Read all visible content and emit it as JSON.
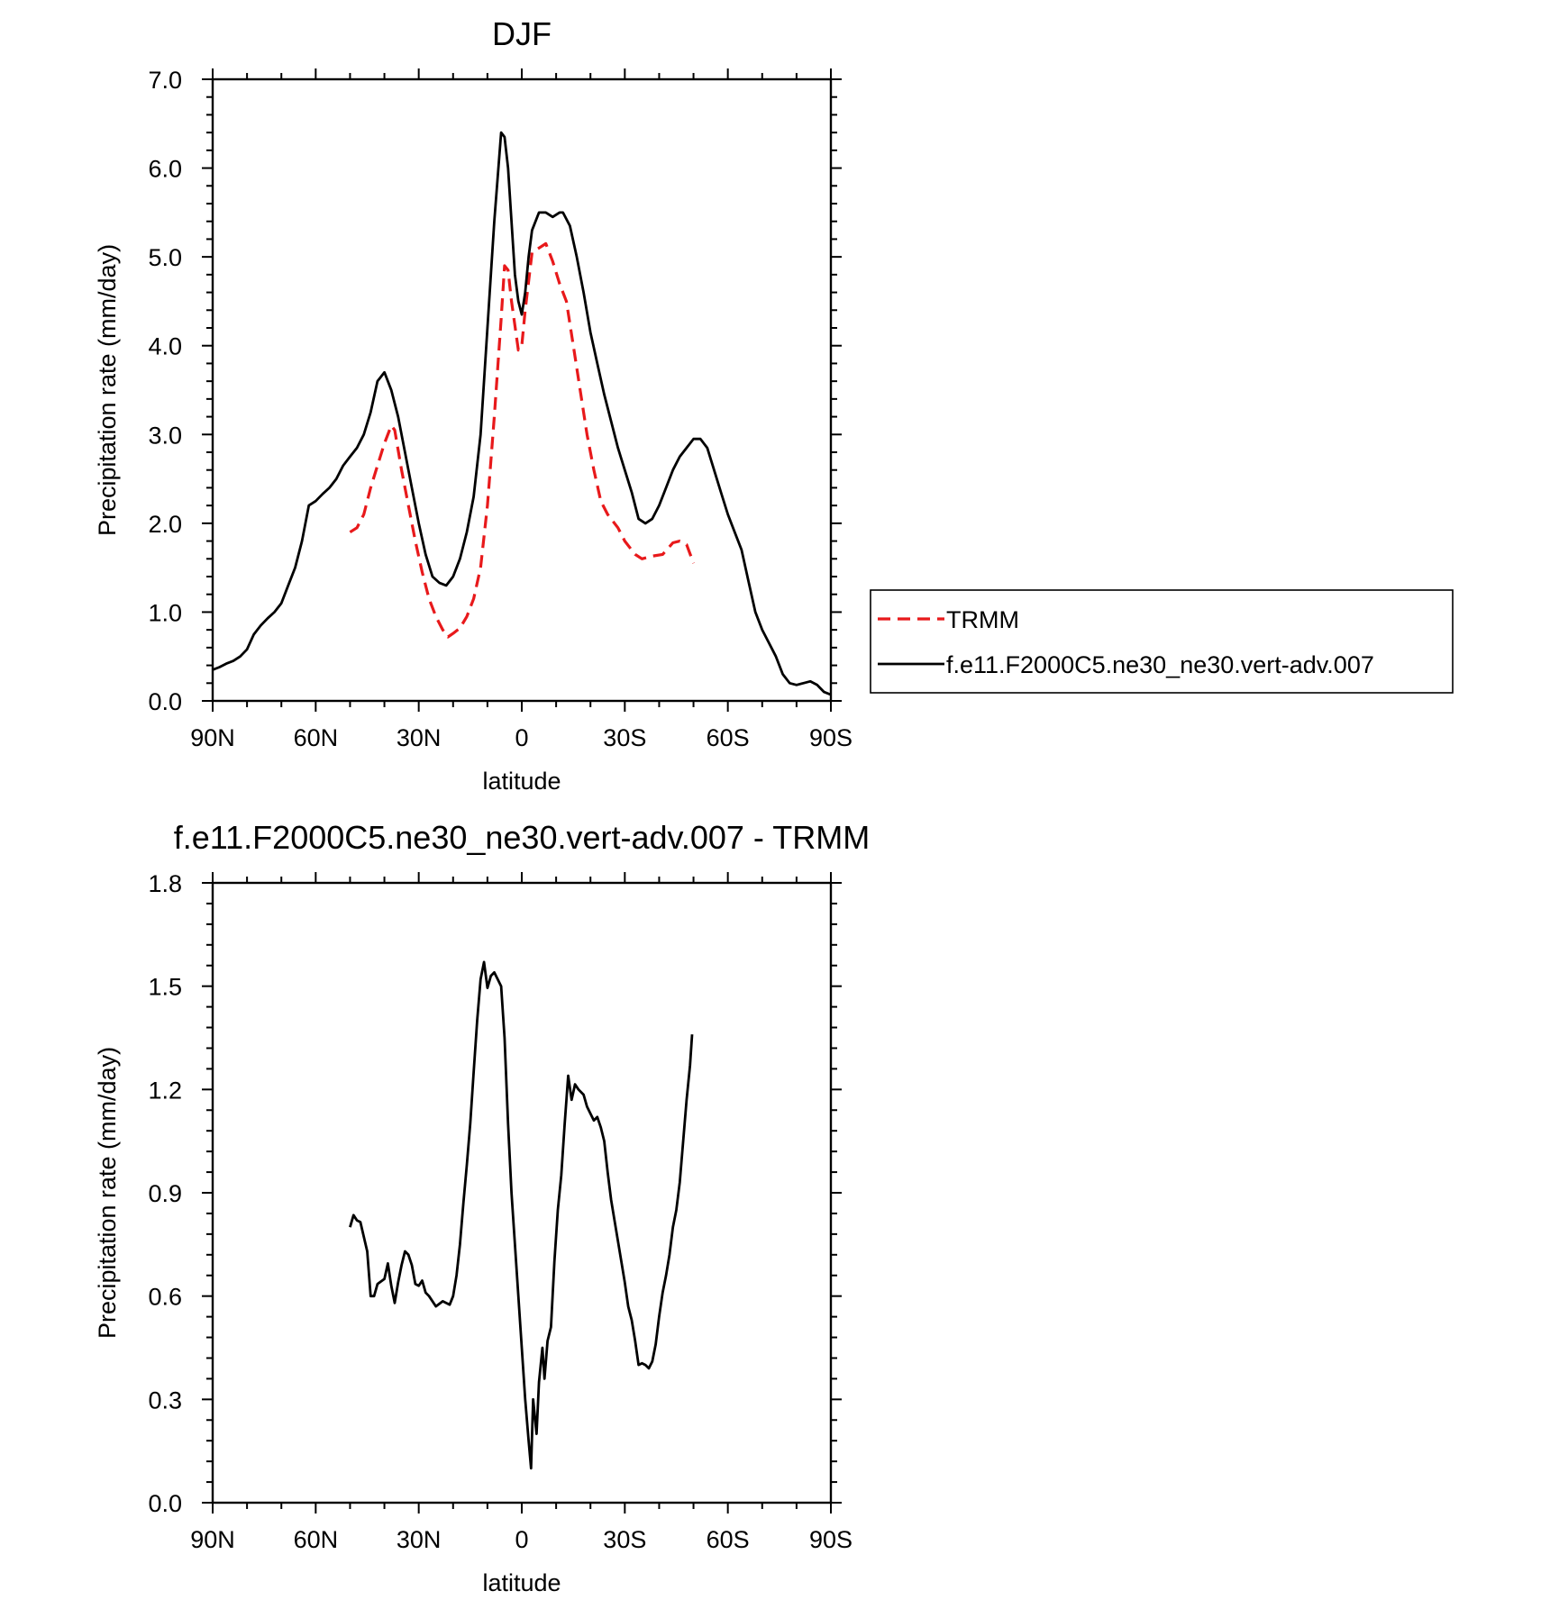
{
  "chart_data": [
    {
      "type": "line",
      "title": "DJF",
      "xlabel": "latitude",
      "ylabel": "Precipitation rate (mm/day)",
      "x_range": [
        90,
        -90
      ],
      "ylim": [
        0,
        7
      ],
      "xticks": [
        {
          "value": 90,
          "label": "90N"
        },
        {
          "value": 60,
          "label": "60N"
        },
        {
          "value": 30,
          "label": "30N"
        },
        {
          "value": 0,
          "label": "0"
        },
        {
          "value": -30,
          "label": "30S"
        },
        {
          "value": -60,
          "label": "60S"
        },
        {
          "value": -90,
          "label": "90S"
        }
      ],
      "yticks": [
        {
          "value": 0,
          "label": "0.0"
        },
        {
          "value": 1,
          "label": "1.0"
        },
        {
          "value": 2,
          "label": "2.0"
        },
        {
          "value": 3,
          "label": "3.0"
        },
        {
          "value": 4,
          "label": "4.0"
        },
        {
          "value": 5,
          "label": "5.0"
        },
        {
          "value": 6,
          "label": "6.0"
        },
        {
          "value": 7,
          "label": "7.0"
        }
      ],
      "legend_position": "right",
      "series": [
        {
          "name": "TRMM",
          "color": "#e8191b",
          "style": "dashed",
          "points": [
            [
              50,
              1.9
            ],
            [
              48,
              1.95
            ],
            [
              46,
              2.1
            ],
            [
              44,
              2.4
            ],
            [
              42,
              2.65
            ],
            [
              40,
              2.9
            ],
            [
              38,
              3.1
            ],
            [
              37,
              3.05
            ],
            [
              35,
              2.6
            ],
            [
              33,
              2.2
            ],
            [
              31,
              1.8
            ],
            [
              29,
              1.45
            ],
            [
              27,
              1.15
            ],
            [
              25,
              0.95
            ],
            [
              23,
              0.8
            ],
            [
              21.5,
              0.72
            ],
            [
              20,
              0.76
            ],
            [
              18,
              0.82
            ],
            [
              16,
              0.95
            ],
            [
              14,
              1.15
            ],
            [
              12,
              1.5
            ],
            [
              10,
              2.2
            ],
            [
              8,
              3.2
            ],
            [
              6,
              4.3
            ],
            [
              5,
              4.9
            ],
            [
              4,
              4.85
            ],
            [
              3,
              4.5
            ],
            [
              1,
              3.95
            ],
            [
              0,
              4.0
            ],
            [
              -1,
              4.4
            ],
            [
              -3,
              5.05
            ],
            [
              -5,
              5.1
            ],
            [
              -7,
              5.15
            ],
            [
              -9,
              4.95
            ],
            [
              -11,
              4.7
            ],
            [
              -13,
              4.5
            ],
            [
              -15,
              4.0
            ],
            [
              -17,
              3.5
            ],
            [
              -19,
              3.0
            ],
            [
              -21,
              2.6
            ],
            [
              -23,
              2.25
            ],
            [
              -25,
              2.1
            ],
            [
              -28,
              1.95
            ],
            [
              -30,
              1.8
            ],
            [
              -33,
              1.65
            ],
            [
              -35,
              1.6
            ],
            [
              -38,
              1.63
            ],
            [
              -41,
              1.65
            ],
            [
              -44,
              1.78
            ],
            [
              -46,
              1.8
            ],
            [
              -48,
              1.76
            ],
            [
              -50,
              1.55
            ]
          ]
        },
        {
          "name": "f.e11.F2000C5.ne30_ne30.vert-adv.007",
          "color": "#000000",
          "style": "solid",
          "points": [
            [
              90,
              0.35
            ],
            [
              88,
              0.38
            ],
            [
              86,
              0.42
            ],
            [
              84,
              0.45
            ],
            [
              82,
              0.5
            ],
            [
              80,
              0.58
            ],
            [
              78,
              0.75
            ],
            [
              76,
              0.85
            ],
            [
              74,
              0.93
            ],
            [
              72,
              1.0
            ],
            [
              70,
              1.1
            ],
            [
              68,
              1.3
            ],
            [
              66,
              1.5
            ],
            [
              64,
              1.8
            ],
            [
              62,
              2.2
            ],
            [
              60,
              2.25
            ],
            [
              58,
              2.33
            ],
            [
              56,
              2.4
            ],
            [
              54,
              2.5
            ],
            [
              52,
              2.65
            ],
            [
              50,
              2.75
            ],
            [
              48,
              2.85
            ],
            [
              46,
              3.0
            ],
            [
              44,
              3.25
            ],
            [
              42,
              3.6
            ],
            [
              40,
              3.7
            ],
            [
              38,
              3.5
            ],
            [
              36,
              3.2
            ],
            [
              34,
              2.8
            ],
            [
              32,
              2.4
            ],
            [
              30,
              2.0
            ],
            [
              28,
              1.65
            ],
            [
              26,
              1.4
            ],
            [
              24,
              1.33
            ],
            [
              22,
              1.3
            ],
            [
              20,
              1.4
            ],
            [
              18,
              1.6
            ],
            [
              16,
              1.9
            ],
            [
              14,
              2.3
            ],
            [
              12,
              3.0
            ],
            [
              10,
              4.2
            ],
            [
              8,
              5.4
            ],
            [
              6,
              6.4
            ],
            [
              5,
              6.35
            ],
            [
              4,
              6.0
            ],
            [
              3,
              5.4
            ],
            [
              2,
              4.8
            ],
            [
              1,
              4.5
            ],
            [
              0,
              4.35
            ],
            [
              -1,
              4.6
            ],
            [
              -2,
              5.0
            ],
            [
              -3,
              5.3
            ],
            [
              -5,
              5.5
            ],
            [
              -7,
              5.5
            ],
            [
              -9,
              5.45
            ],
            [
              -11,
              5.5
            ],
            [
              -12,
              5.5
            ],
            [
              -14,
              5.35
            ],
            [
              -16,
              5.0
            ],
            [
              -18,
              4.6
            ],
            [
              -20,
              4.15
            ],
            [
              -22,
              3.8
            ],
            [
              -24,
              3.45
            ],
            [
              -26,
              3.15
            ],
            [
              -28,
              2.85
            ],
            [
              -30,
              2.6
            ],
            [
              -32,
              2.35
            ],
            [
              -34,
              2.05
            ],
            [
              -36,
              2.0
            ],
            [
              -38,
              2.05
            ],
            [
              -40,
              2.2
            ],
            [
              -42,
              2.4
            ],
            [
              -44,
              2.6
            ],
            [
              -46,
              2.75
            ],
            [
              -48,
              2.85
            ],
            [
              -50,
              2.95
            ],
            [
              -52,
              2.95
            ],
            [
              -54,
              2.85
            ],
            [
              -56,
              2.6
            ],
            [
              -58,
              2.35
            ],
            [
              -60,
              2.1
            ],
            [
              -62,
              1.9
            ],
            [
              -64,
              1.7
            ],
            [
              -66,
              1.35
            ],
            [
              -68,
              1.0
            ],
            [
              -70,
              0.8
            ],
            [
              -72,
              0.65
            ],
            [
              -74,
              0.5
            ],
            [
              -76,
              0.3
            ],
            [
              -78,
              0.2
            ],
            [
              -80,
              0.18
            ],
            [
              -82,
              0.2
            ],
            [
              -84,
              0.22
            ],
            [
              -86,
              0.18
            ],
            [
              -88,
              0.1
            ],
            [
              -90,
              0.07
            ]
          ]
        }
      ]
    },
    {
      "type": "line",
      "title": "f.e11.F2000C5.ne30_ne30.vert-adv.007 - TRMM",
      "xlabel": "latitude",
      "ylabel": "Precipitation rate (mm/day)",
      "x_range": [
        90,
        -90
      ],
      "ylim": [
        0,
        1.8
      ],
      "xticks": [
        {
          "value": 90,
          "label": "90N"
        },
        {
          "value": 60,
          "label": "60N"
        },
        {
          "value": 30,
          "label": "30N"
        },
        {
          "value": 0,
          "label": "0"
        },
        {
          "value": -30,
          "label": "30S"
        },
        {
          "value": -60,
          "label": "60S"
        },
        {
          "value": -90,
          "label": "90S"
        }
      ],
      "yticks": [
        {
          "value": 0,
          "label": "0.0"
        },
        {
          "value": 0.3,
          "label": "0.3"
        },
        {
          "value": 0.6,
          "label": "0.6"
        },
        {
          "value": 0.9,
          "label": "0.9"
        },
        {
          "value": 1.2,
          "label": "1.2"
        },
        {
          "value": 1.5,
          "label": "1.5"
        },
        {
          "value": 1.8,
          "label": "1.8"
        }
      ],
      "series": [
        {
          "color": "#000000",
          "style": "solid",
          "points": [
            [
              50,
              0.8
            ],
            [
              49,
              0.835
            ],
            [
              48,
              0.82
            ],
            [
              47,
              0.815
            ],
            [
              45,
              0.73
            ],
            [
              44,
              0.6
            ],
            [
              43,
              0.6
            ],
            [
              42,
              0.635
            ],
            [
              40,
              0.65
            ],
            [
              39,
              0.695
            ],
            [
              38,
              0.63
            ],
            [
              37,
              0.58
            ],
            [
              36,
              0.64
            ],
            [
              35,
              0.69
            ],
            [
              34,
              0.73
            ],
            [
              33,
              0.72
            ],
            [
              32,
              0.69
            ],
            [
              31,
              0.635
            ],
            [
              30,
              0.63
            ],
            [
              29,
              0.645
            ],
            [
              28,
              0.61
            ],
            [
              27,
              0.6
            ],
            [
              25,
              0.57
            ],
            [
              23,
              0.585
            ],
            [
              21,
              0.575
            ],
            [
              20,
              0.6
            ],
            [
              19,
              0.66
            ],
            [
              18,
              0.75
            ],
            [
              17,
              0.87
            ],
            [
              16,
              0.98
            ],
            [
              15,
              1.1
            ],
            [
              14,
              1.25
            ],
            [
              13,
              1.4
            ],
            [
              12,
              1.52
            ],
            [
              11,
              1.57
            ],
            [
              10,
              1.495
            ],
            [
              9,
              1.53
            ],
            [
              8,
              1.54
            ],
            [
              7,
              1.52
            ],
            [
              6,
              1.5
            ],
            [
              5,
              1.35
            ],
            [
              4,
              1.1
            ],
            [
              3,
              0.9
            ],
            [
              2,
              0.75
            ],
            [
              1,
              0.6
            ],
            [
              0,
              0.45
            ],
            [
              -1,
              0.3
            ],
            [
              -2,
              0.18
            ],
            [
              -2.7,
              0.1
            ],
            [
              -3.3,
              0.3
            ],
            [
              -4.3,
              0.2
            ],
            [
              -5,
              0.35
            ],
            [
              -6,
              0.45
            ],
            [
              -6.6,
              0.36
            ],
            [
              -7.5,
              0.47
            ],
            [
              -8.5,
              0.51
            ],
            [
              -9.5,
              0.7
            ],
            [
              -10.5,
              0.85
            ],
            [
              -11.5,
              0.95
            ],
            [
              -12.5,
              1.1
            ],
            [
              -13.5,
              1.24
            ],
            [
              -14.5,
              1.17
            ],
            [
              -15.5,
              1.215
            ],
            [
              -16.5,
              1.2
            ],
            [
              -18,
              1.185
            ],
            [
              -19,
              1.15
            ],
            [
              -20,
              1.13
            ],
            [
              -21,
              1.11
            ],
            [
              -22,
              1.12
            ],
            [
              -23,
              1.09
            ],
            [
              -24,
              1.05
            ],
            [
              -25,
              0.96
            ],
            [
              -26,
              0.88
            ],
            [
              -27,
              0.82
            ],
            [
              -28,
              0.76
            ],
            [
              -29,
              0.7
            ],
            [
              -30,
              0.64
            ],
            [
              -31,
              0.57
            ],
            [
              -32,
              0.53
            ],
            [
              -33,
              0.47
            ],
            [
              -34,
              0.4
            ],
            [
              -35,
              0.405
            ],
            [
              -36,
              0.4
            ],
            [
              -37,
              0.39
            ],
            [
              -38,
              0.41
            ],
            [
              -39,
              0.46
            ],
            [
              -40,
              0.54
            ],
            [
              -41,
              0.61
            ],
            [
              -42,
              0.66
            ],
            [
              -43,
              0.72
            ],
            [
              -44,
              0.8
            ],
            [
              -45,
              0.85
            ],
            [
              -46,
              0.93
            ],
            [
              -47,
              1.05
            ],
            [
              -48,
              1.17
            ],
            [
              -49,
              1.27
            ],
            [
              -49.6,
              1.36
            ]
          ]
        }
      ]
    }
  ]
}
